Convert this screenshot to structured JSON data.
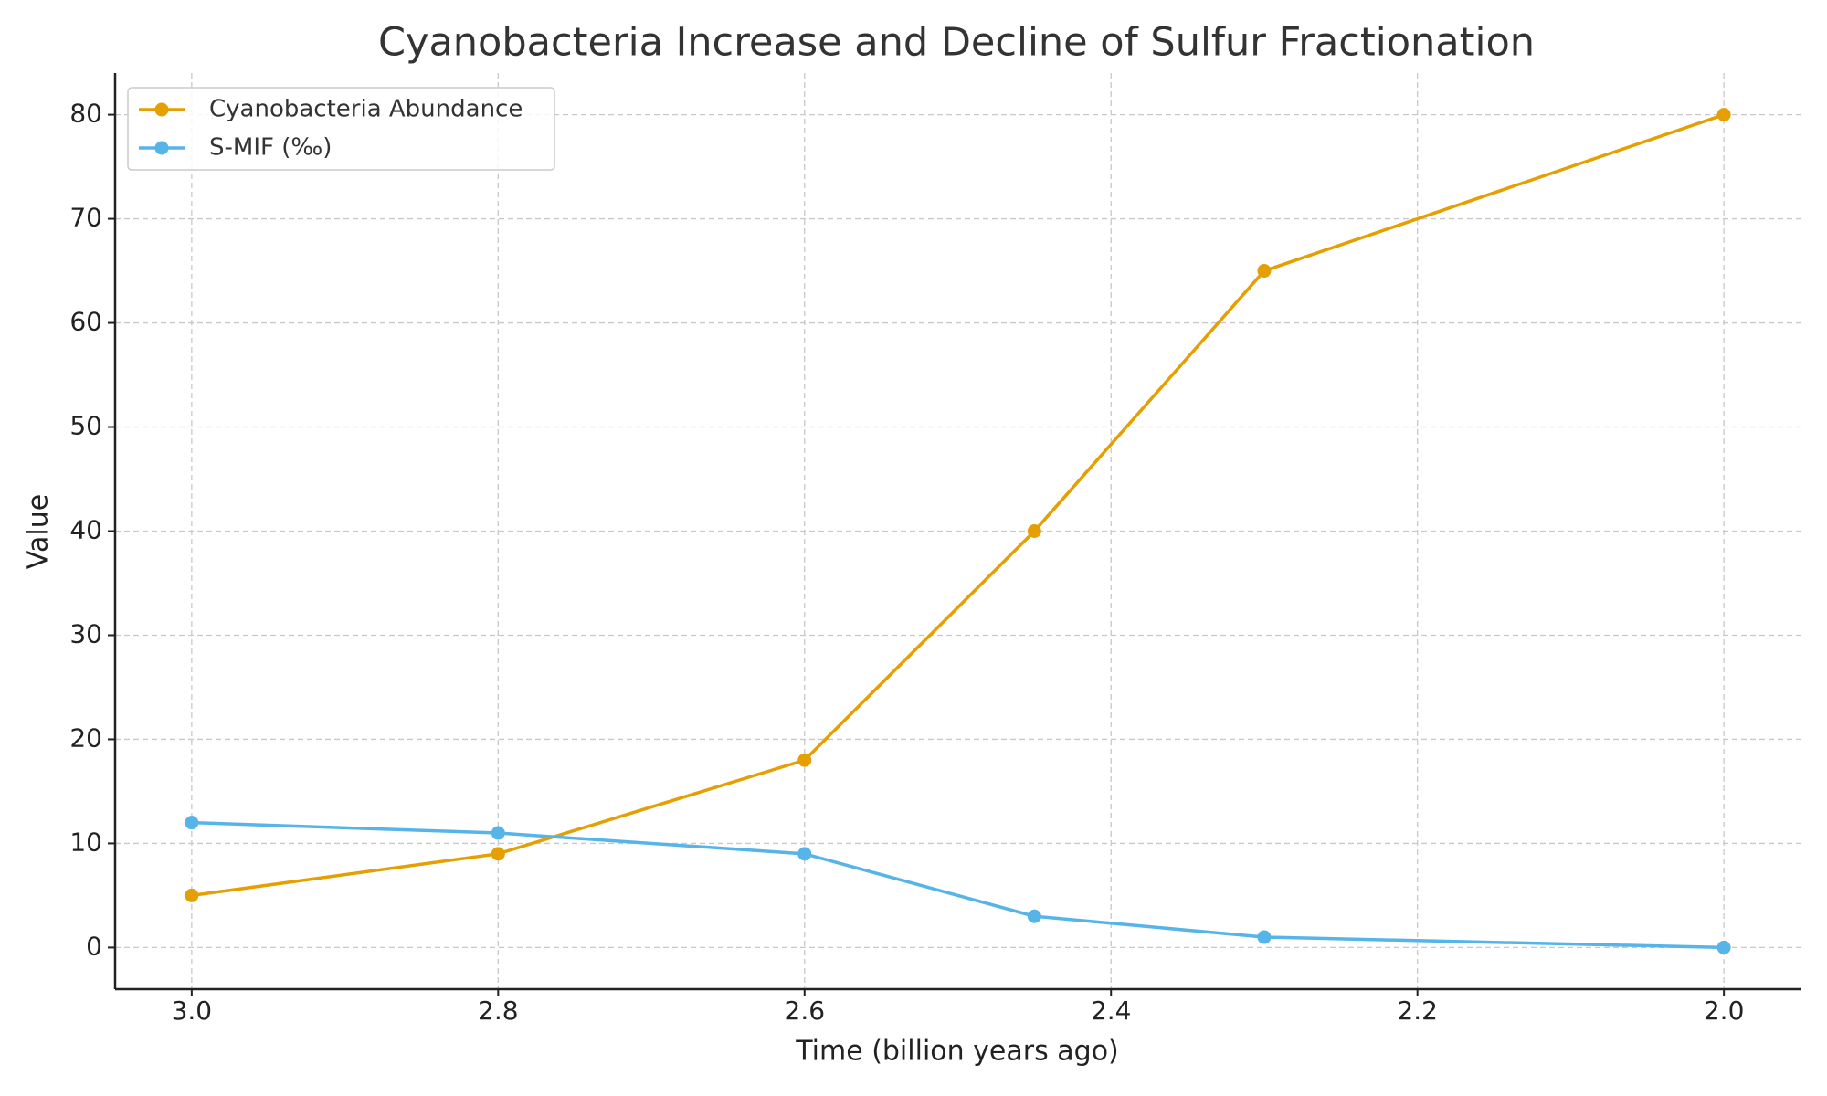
{
  "chart_data": {
    "type": "line",
    "title": "Cyanobacteria Increase and Decline of Sulfur Fractionation",
    "x_label": "Time (billion years ago)",
    "y_label": "Value",
    "x": [
      3.0,
      2.8,
      2.6,
      2.45,
      2.3,
      2.0
    ],
    "series": [
      {
        "name": "Cyanobacteria Abundance",
        "color": "#e69f00",
        "values": [
          5,
          9,
          18,
          40,
          65,
          80
        ]
      },
      {
        "name": "S-MIF (‰)",
        "color": "#56b4e9",
        "values": [
          12,
          11,
          9,
          3,
          1,
          0
        ]
      }
    ],
    "xlim": [
      3.05,
      1.95
    ],
    "xticks": [
      {
        "value": 3.0,
        "label": "3.0"
      },
      2.8,
      2.6,
      2.4,
      2.2,
      {
        "value": 2.0,
        "label": "2.0"
      }
    ],
    "ylim": [
      -4,
      84
    ],
    "yticks": [
      0,
      10,
      20,
      30,
      40,
      50,
      60,
      70,
      80
    ],
    "grid": true,
    "legend": "upper-left"
  }
}
